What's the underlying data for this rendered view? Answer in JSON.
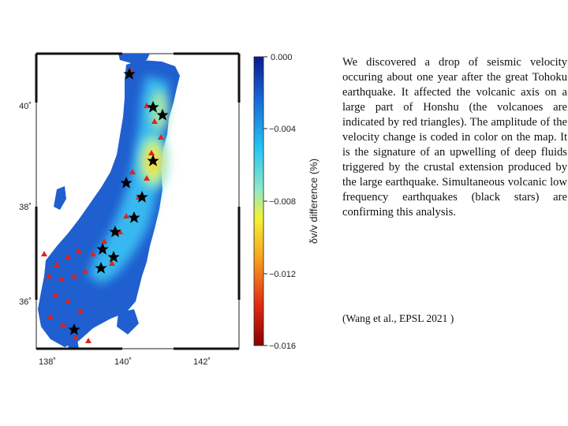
{
  "map": {
    "lon_ticks": [
      "138˚",
      "140˚",
      "142˚"
    ],
    "lat_ticks": [
      "40˚",
      "38˚",
      "36˚"
    ]
  },
  "colorbar": {
    "label": "δv/v difference (%)",
    "ticks": [
      "0.000",
      "−0.004",
      "−0.008",
      "−0.012",
      "−0.016"
    ],
    "colors": [
      "#0b1a8c",
      "#1565d8",
      "#26c6f2",
      "#8fe8c8",
      "#f4f232",
      "#f8a020",
      "#e02a12",
      "#8a0000"
    ]
  },
  "description": "We discovered a drop of seismic velocity occuring about one year after the great Tohoku earthquake. It affected the volcanic axis on a large part of Honshu (the volcanoes are indicated by red triangles).  The amplitude of the velocity change is coded in color on the map. It is the signature of an upwelling of deep fluids triggered by the crustal extension produced by the large earthquake.  Simultaneous volcanic low frequency  earthquakes (black stars) are confirming this analysis.",
  "citation": "(Wang et al., EPSL 2021 )"
}
